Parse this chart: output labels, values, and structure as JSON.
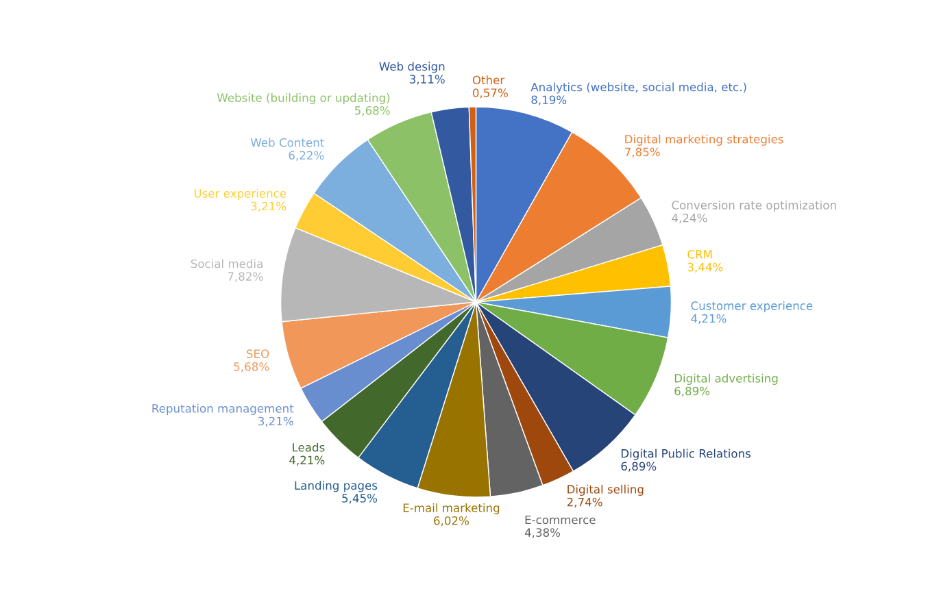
{
  "chart_data": {
    "type": "pie",
    "categories": [
      "Analytics (website, social media, etc.)",
      "Digital marketing strategies",
      "Conversion rate optimization",
      "CRM",
      "Customer experience",
      "Digital advertising",
      "Digital Public Relations",
      "Digital selling",
      "E-commerce",
      "E-mail marketing",
      "Landing pages",
      "Leads",
      "Reputation management",
      "SEO",
      "Social media",
      "User experience",
      "Web Content",
      "Website (building or updating)",
      "Web design",
      "Other"
    ],
    "values": [
      8.19,
      7.85,
      4.24,
      3.44,
      4.21,
      6.89,
      6.89,
      2.74,
      4.38,
      6.02,
      5.45,
      4.21,
      3.21,
      5.68,
      7.82,
      3.21,
      6.22,
      5.68,
      3.11,
      0.57
    ],
    "value_labels": [
      "8,19%",
      "7,85%",
      "4,24%",
      "3,44%",
      "4,21%",
      "6,89%",
      "6,89%",
      "2,74%",
      "4,38%",
      "6,02%",
      "5,45%",
      "4,21%",
      "3,21%",
      "5,68%",
      "7,82%",
      "3,21%",
      "6,22%",
      "5,68%",
      "3,11%",
      "0,57%"
    ],
    "colors": [
      "#4472c4",
      "#ed7d31",
      "#a5a5a5",
      "#ffc000",
      "#5b9bd5",
      "#70ad47",
      "#264478",
      "#9e480e",
      "#636363",
      "#997300",
      "#255e91",
      "#43682b",
      "#698ed0",
      "#f1975a",
      "#b7b7b7",
      "#ffcd33",
      "#7cafdd",
      "#8cc168",
      "#335aa1",
      "#d26012"
    ]
  }
}
